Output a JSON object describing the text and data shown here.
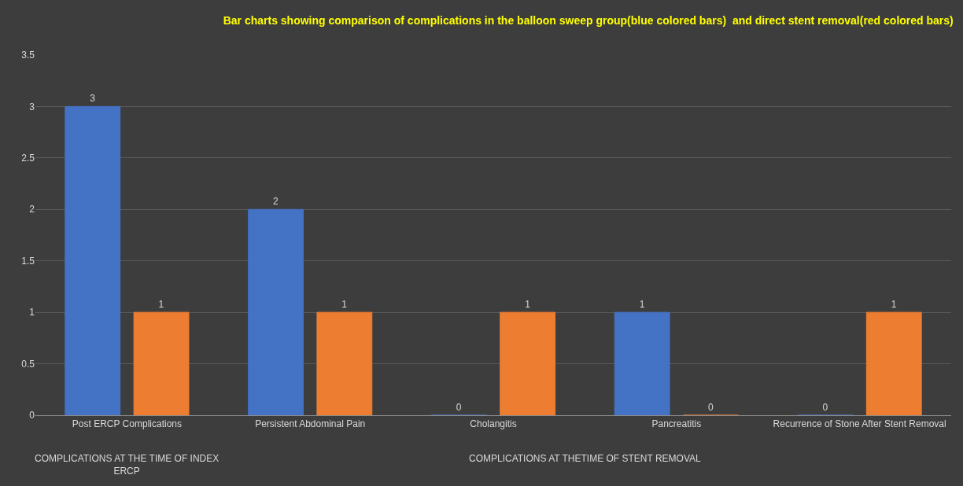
{
  "chart_data": {
    "type": "bar",
    "title": "Bar charts showing comparison of complications in the balloon sweep group(blue colored bars)  and direct stent removal(red colored bars)",
    "categories": [
      "Post ERCP Complications",
      "Persistent Abdominal Pain",
      "Cholangitis",
      "Pancreatitis",
      "Recurrence of Stone After Stent Removal"
    ],
    "series": [
      {
        "color": "#4472c4",
        "values": [
          3,
          2,
          0,
          1,
          0
        ]
      },
      {
        "color": "#ed7d31",
        "values": [
          1,
          1,
          1,
          0,
          1
        ]
      }
    ],
    "ylim": [
      0,
      3.5
    ],
    "yticks": [
      0,
      0.5,
      1,
      1.5,
      2,
      2.5,
      3,
      3.5
    ],
    "grid": "y",
    "data_labels": true,
    "annotations": [
      "COMPLICATIONS AT THE TIME OF INDEX ERCP",
      "COMPLICATIONS AT THETIME OF STENT REMOVAL"
    ]
  }
}
